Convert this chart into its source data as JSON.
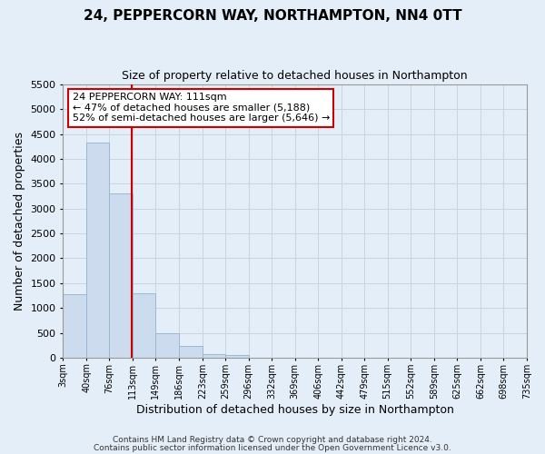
{
  "title": "24, PEPPERCORN WAY, NORTHAMPTON, NN4 0TT",
  "subtitle": "Size of property relative to detached houses in Northampton",
  "xlabel": "Distribution of detached houses by size in Northampton",
  "ylabel": "Number of detached properties",
  "bar_edges": [
    3,
    40,
    76,
    113,
    149,
    186,
    223,
    259,
    296,
    332,
    369,
    406,
    442,
    479,
    515,
    552,
    589,
    625,
    662,
    698,
    735
  ],
  "bar_heights": [
    1270,
    4330,
    3300,
    1290,
    490,
    240,
    70,
    50,
    0,
    0,
    0,
    0,
    0,
    0,
    0,
    0,
    0,
    0,
    0,
    0
  ],
  "bar_color": "#ccdcee",
  "bar_edge_color": "#9ab8d4",
  "property_line_x": 111,
  "property_line_color": "#cc0000",
  "ylim": [
    0,
    5500
  ],
  "yticks": [
    0,
    500,
    1000,
    1500,
    2000,
    2500,
    3000,
    3500,
    4000,
    4500,
    5000,
    5500
  ],
  "xtick_labels": [
    "3sqm",
    "40sqm",
    "76sqm",
    "113sqm",
    "149sqm",
    "186sqm",
    "223sqm",
    "259sqm",
    "296sqm",
    "332sqm",
    "369sqm",
    "406sqm",
    "442sqm",
    "479sqm",
    "515sqm",
    "552sqm",
    "589sqm",
    "625sqm",
    "662sqm",
    "698sqm",
    "735sqm"
  ],
  "annotation_title": "24 PEPPERCORN WAY: 111sqm",
  "annotation_line1": "← 47% of detached houses are smaller (5,188)",
  "annotation_line2": "52% of semi-detached houses are larger (5,646) →",
  "annotation_box_color": "#ffffff",
  "annotation_box_edge": "#cc0000",
  "grid_color": "#c8d4e0",
  "background_color": "#e4eef8",
  "footer1": "Contains HM Land Registry data © Crown copyright and database right 2024.",
  "footer2": "Contains public sector information licensed under the Open Government Licence v3.0."
}
